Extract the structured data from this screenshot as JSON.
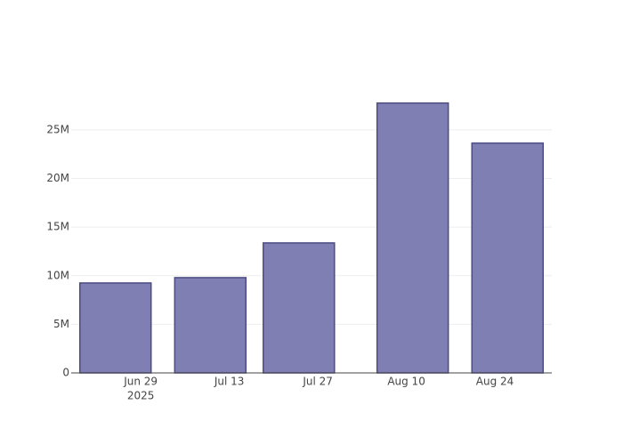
{
  "chart_data": {
    "type": "bar",
    "x": [
      "2025-06-25",
      "2025-07-10",
      "2025-07-24",
      "2025-08-11",
      "2025-08-26"
    ],
    "values": [
      9250000,
      9800000,
      13370000,
      27750000,
      23630000
    ],
    "color": "#7f7fb3",
    "edge_color": "#4b4b82",
    "xlim": [
      "2025-06-18",
      "2025-09-02"
    ],
    "xticks": [
      {
        "value": "2025-06-29",
        "label": "Jun 29"
      },
      {
        "value": "2025-07-13",
        "label": "Jul 13"
      },
      {
        "value": "2025-07-27",
        "label": "Jul 27"
      },
      {
        "value": "2025-08-10",
        "label": "Aug 10"
      },
      {
        "value": "2025-08-24",
        "label": "Aug 24"
      }
    ],
    "xtick_year": "2025",
    "ylim": [
      0,
      29200000
    ],
    "yticks": [
      0,
      {
        "value": 5000000,
        "label": "5M"
      },
      {
        "value": 10000000,
        "label": "10M"
      },
      {
        "value": 15000000,
        "label": "15M"
      },
      {
        "value": 20000000,
        "label": "20M"
      },
      {
        "value": 25000000,
        "label": "25M"
      }
    ],
    "grid": true
  }
}
